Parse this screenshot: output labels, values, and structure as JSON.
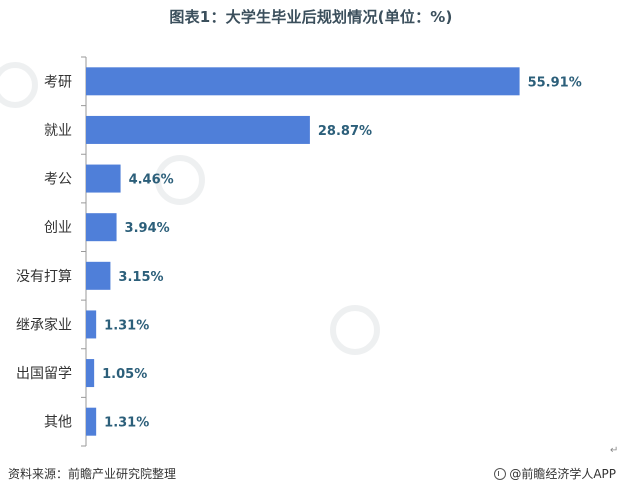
{
  "title": "图表1：大学生毕业后规划情况(单位：%)",
  "footer": {
    "source": "资料来源：前瞻产业研究院整理",
    "brand": "@前瞻经济学人APP"
  },
  "colors": {
    "bar": "#4f7fd9",
    "axis": "#9a9a9a",
    "value_text": "#2c5f7a"
  },
  "chart_data": {
    "type": "bar",
    "orientation": "horizontal",
    "title": "图表1：大学生毕业后规划情况(单位：%)",
    "xlabel": "",
    "ylabel": "",
    "categories": [
      "考研",
      "就业",
      "考公",
      "创业",
      "没有打算",
      "继承家业",
      "出国留学",
      "其他"
    ],
    "values": [
      55.91,
      28.87,
      4.46,
      3.94,
      3.15,
      1.31,
      1.05,
      1.31
    ],
    "value_labels": [
      "55.91%",
      "28.87%",
      "4.46%",
      "3.94%",
      "3.15%",
      "1.31%",
      "1.05%",
      "1.31%"
    ],
    "xlim": [
      0,
      58.8
    ],
    "grid": false,
    "legend": "none"
  }
}
